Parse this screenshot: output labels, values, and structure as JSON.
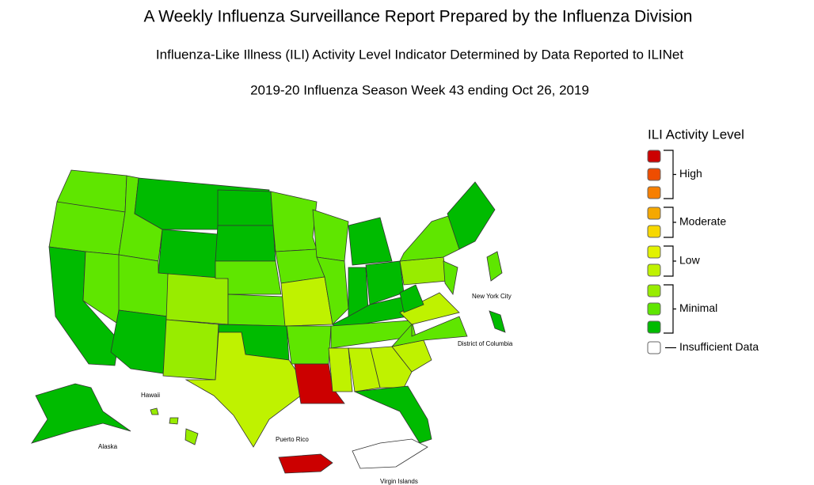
{
  "header": {
    "title": "A Weekly Influenza Surveillance Report Prepared by the Influenza Division",
    "subtitle": "Influenza-Like Illness (ILI) Activity Level Indicator Determined by Data Reported to ILINet",
    "season": "2019-20 Influenza Season Week 43 ending Oct 26, 2019"
  },
  "legend": {
    "title": "ILI Activity Level",
    "groups": [
      {
        "label": "High",
        "colors": [
          "#cc0000",
          "#ee4d00",
          "#f77f00"
        ]
      },
      {
        "label": "Moderate",
        "colors": [
          "#f5a800",
          "#f7d800"
        ]
      },
      {
        "label": "Low",
        "colors": [
          "#e2f200",
          "#bff200"
        ]
      },
      {
        "label": "Minimal",
        "colors": [
          "#98ec00",
          "#5fe600",
          "#00bb00"
        ]
      },
      {
        "label": "Insufficient Data",
        "colors": [
          "#ffffff"
        ]
      }
    ]
  },
  "map": {
    "labels": [
      "New York City",
      "District of Columbia",
      "Hawaii",
      "Alaska",
      "Puerto Rico",
      "Virgin Islands"
    ]
  }
}
